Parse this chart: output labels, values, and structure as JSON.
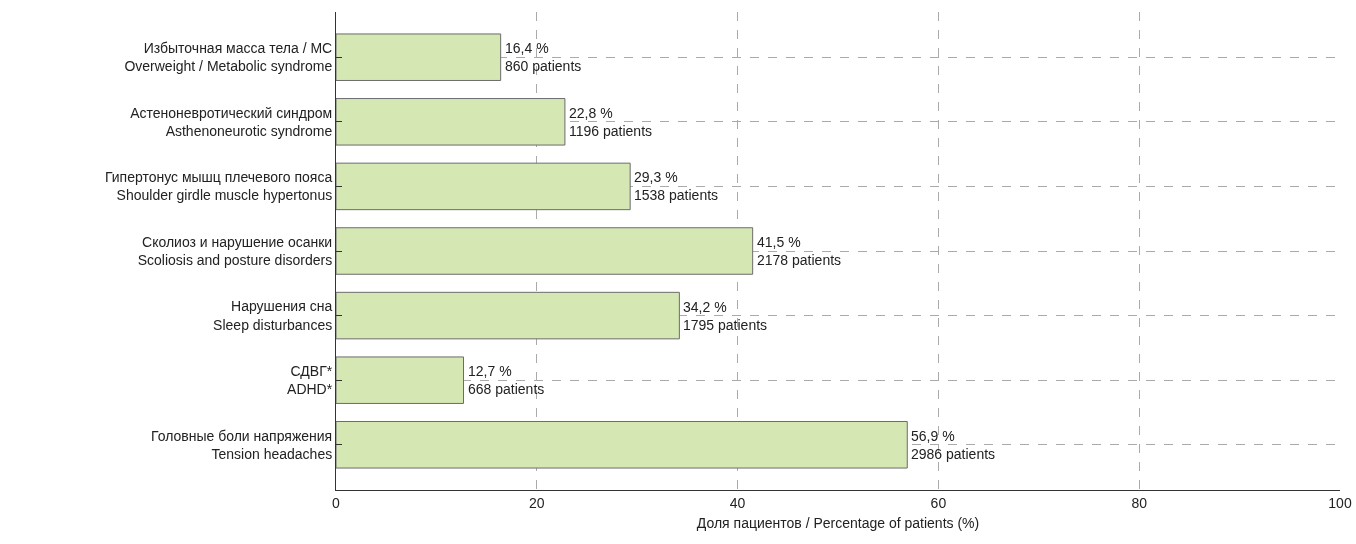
{
  "chart_data": {
    "type": "bar",
    "orientation": "horizontal",
    "categories": [
      "Избыточная масса тела / МС\nOverweight / Metabolic syndrome",
      "Астеноневротический синдром\nAsthenoneurotic syndrome",
      "Гипертонус мышц плечевого пояса\nShoulder girdle muscle hypertonus",
      "Сколиоз и нарушение осанки\nScoliosis and posture disorders",
      "Нарушения сна\nSleep disturbances",
      "СДВГ*\nADHD*",
      "Головные боли напряжения\nTension headaches"
    ],
    "values": [
      16.4,
      22.8,
      29.3,
      41.5,
      34.2,
      12.7,
      56.9
    ],
    "value_labels": [
      "16,4 %\n860 patients",
      "22,8 %\n1196 patients",
      "29,3 %\n1538 patients",
      "41,5 %\n2178 patients",
      "34,2 %\n1795 patients",
      "12,7 %\n668 patients",
      "56,9 %\n2986 patients"
    ],
    "color": "#d5e8b4",
    "xlabel": "Доля пациентов / Percentage of patients (%)",
    "xlim": [
      0,
      100
    ],
    "xticks": [
      0,
      20,
      40,
      60,
      80,
      100
    ],
    "grid": true
  }
}
